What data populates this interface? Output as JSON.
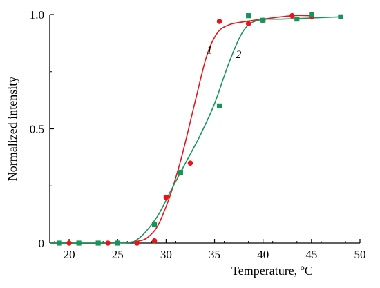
{
  "chart_data": {
    "type": "scatter",
    "title": "",
    "xlabel": "Temperature, ",
    "xlabel_sup": "o",
    "xlabel_unit": "C",
    "ylabel": "Normalized intensity",
    "xlim": [
      18,
      50
    ],
    "ylim": [
      0,
      1.0
    ],
    "x_ticks": [
      20,
      25,
      30,
      35,
      40,
      45,
      50
    ],
    "y_ticks": [
      0,
      0.5,
      1.0
    ],
    "x_tick_labels": [
      "20",
      "25",
      "30",
      "35",
      "40",
      "45",
      "50"
    ],
    "y_tick_labels": [
      "0",
      "0.5",
      "1.0"
    ],
    "grid": false,
    "legend": "none",
    "series": [
      {
        "label": "1",
        "marker": "circle",
        "color": "#e8141c",
        "x": [
          20,
          24,
          27,
          28.8,
          30,
          32.5,
          35.5,
          38.5,
          40,
          43,
          45
        ],
        "y": [
          0,
          0,
          0,
          0.01,
          0.2,
          0.35,
          0.97,
          0.96,
          0.975,
          0.995,
          0.99
        ],
        "fit": {
          "x": [
            18,
            26,
            28.5,
            30,
            31.5,
            33,
            34.2,
            35.3,
            36.5,
            38,
            40,
            43,
            45
          ],
          "y": [
            0,
            0.003,
            0.04,
            0.16,
            0.36,
            0.62,
            0.82,
            0.92,
            0.955,
            0.968,
            0.98,
            0.995,
            0.995
          ]
        }
      },
      {
        "label": "2",
        "marker": "square",
        "color": "#16955a",
        "x": [
          19,
          21,
          23,
          25,
          28.8,
          31.5,
          35.5,
          38.5,
          40,
          43.5,
          45,
          48
        ],
        "y": [
          0,
          0,
          0,
          0,
          0.08,
          0.31,
          0.6,
          0.995,
          0.975,
          0.98,
          1.0,
          0.99
        ],
        "fit": {
          "x": [
            18,
            25,
            27,
            29,
            30.5,
            32,
            33.5,
            35,
            36.5,
            38,
            39.5,
            42,
            45,
            48
          ],
          "y": [
            0,
            0.001,
            0.015,
            0.11,
            0.23,
            0.35,
            0.47,
            0.61,
            0.79,
            0.93,
            0.975,
            0.98,
            0.985,
            0.99
          ]
        }
      }
    ]
  }
}
